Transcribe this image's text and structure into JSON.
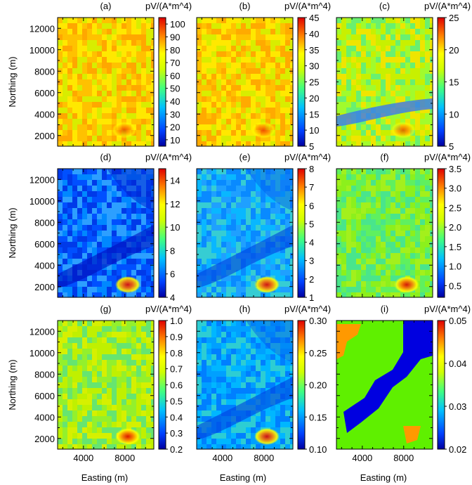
{
  "figure": {
    "xlabel": "Easting (m)",
    "ylabel": "Northing (m)",
    "colorbar_unit": "pV/(A*m^4)"
  },
  "chart_data": [
    {
      "type": "heatmap",
      "title": "(a)",
      "xlabel": "",
      "ylabel": "Northing (m)",
      "xticks": [],
      "yticks": [
        "2000",
        "4000",
        "6000",
        "8000",
        "10000",
        "12000"
      ],
      "xlim": [
        1500,
        10800
      ],
      "ylim": [
        1000,
        13000
      ],
      "clim": [
        5,
        105
      ],
      "cticks": [
        "10",
        "20",
        "30",
        "40",
        "50",
        "60",
        "70",
        "80",
        "90",
        "100"
      ],
      "cticks_values": [
        10,
        20,
        30,
        40,
        50,
        60,
        70,
        80,
        90,
        100
      ],
      "unit": "pV/(A*m^4)"
    },
    {
      "type": "heatmap",
      "title": "(b)",
      "xlabel": "",
      "ylabel": "",
      "xticks": [],
      "yticks": [],
      "xlim": [
        1500,
        10800
      ],
      "ylim": [
        1000,
        13000
      ],
      "clim": [
        5,
        45
      ],
      "cticks": [
        "5",
        "10",
        "15",
        "20",
        "25",
        "30",
        "35",
        "40",
        "45"
      ],
      "cticks_values": [
        5,
        10,
        15,
        20,
        25,
        30,
        35,
        40,
        45
      ],
      "unit": "pV/(A*m^4)"
    },
    {
      "type": "heatmap",
      "title": "(c)",
      "xlabel": "",
      "ylabel": "",
      "xticks": [],
      "yticks": [],
      "xlim": [
        1500,
        10800
      ],
      "ylim": [
        1000,
        13000
      ],
      "clim": [
        5,
        25
      ],
      "cticks": [
        "5",
        "10",
        "15",
        "20",
        "25"
      ],
      "cticks_values": [
        5,
        10,
        15,
        20,
        25
      ],
      "unit": "pV/(A*m^4)"
    },
    {
      "type": "heatmap",
      "title": "(d)",
      "xlabel": "",
      "ylabel": "Northing (m)",
      "xticks": [],
      "yticks": [
        "2000",
        "4000",
        "6000",
        "8000",
        "10000",
        "12000"
      ],
      "xlim": [
        1500,
        10800
      ],
      "ylim": [
        1000,
        13000
      ],
      "clim": [
        4,
        15
      ],
      "cticks": [
        "4",
        "6",
        "8",
        "10",
        "12",
        "14"
      ],
      "cticks_values": [
        4,
        6,
        8,
        10,
        12,
        14
      ],
      "unit": "pV/(A*m^4)"
    },
    {
      "type": "heatmap",
      "title": "(e)",
      "xlabel": "",
      "ylabel": "",
      "xticks": [],
      "yticks": [],
      "xlim": [
        1500,
        10800
      ],
      "ylim": [
        1000,
        13000
      ],
      "clim": [
        1,
        8
      ],
      "cticks": [
        "1",
        "2",
        "3",
        "4",
        "5",
        "6",
        "7",
        "8"
      ],
      "cticks_values": [
        1,
        2,
        3,
        4,
        5,
        6,
        7,
        8
      ],
      "unit": "pV/(A*m^4)"
    },
    {
      "type": "heatmap",
      "title": "(f)",
      "xlabel": "",
      "ylabel": "",
      "xticks": [],
      "yticks": [],
      "xlim": [
        1500,
        10800
      ],
      "ylim": [
        1000,
        13000
      ],
      "clim": [
        0.2,
        3.5
      ],
      "cticks": [
        "0.5",
        "1.0",
        "1.5",
        "2.0",
        "2.5",
        "3.0",
        "3.5"
      ],
      "cticks_values": [
        0.5,
        1.0,
        1.5,
        2.0,
        2.5,
        3.0,
        3.5
      ],
      "unit": "pV/(A*m^4)"
    },
    {
      "type": "heatmap",
      "title": "(g)",
      "xlabel": "Easting (m)",
      "ylabel": "Northing (m)",
      "xticks": [
        "4000",
        "8000"
      ],
      "yticks": [
        "2000",
        "4000",
        "6000",
        "8000",
        "10000",
        "12000"
      ],
      "xlim": [
        1500,
        10800
      ],
      "ylim": [
        1000,
        13000
      ],
      "clim": [
        0.2,
        1.0
      ],
      "cticks": [
        "0.2",
        "0.3",
        "0.4",
        "0.5",
        "0.6",
        "0.7",
        "0.8",
        "0.9",
        "1.0"
      ],
      "cticks_values": [
        0.2,
        0.3,
        0.4,
        0.5,
        0.6,
        0.7,
        0.8,
        0.9,
        1.0
      ],
      "unit": "pV/(A*m^4)"
    },
    {
      "type": "heatmap",
      "title": "(h)",
      "xlabel": "Easting (m)",
      "ylabel": "",
      "xticks": [
        "4000",
        "8000"
      ],
      "yticks": [],
      "xlim": [
        1500,
        10800
      ],
      "ylim": [
        1000,
        13000
      ],
      "clim": [
        0.1,
        0.3
      ],
      "cticks": [
        "0.10",
        "0.15",
        "0.20",
        "0.25",
        "0.30"
      ],
      "cticks_values": [
        0.1,
        0.15,
        0.2,
        0.25,
        0.3
      ],
      "unit": "pV/(A*m^4)"
    },
    {
      "type": "heatmap",
      "title": "(i)",
      "xlabel": "Easting (m)",
      "ylabel": "",
      "xticks": [
        "4000",
        "8000"
      ],
      "yticks": [],
      "xlim": [
        1500,
        10800
      ],
      "ylim": [
        1000,
        13000
      ],
      "clim": [
        0.02,
        0.05
      ],
      "cticks": [
        "0.02",
        "0.03",
        "0.04",
        "0.05"
      ],
      "cticks_values": [
        0.02,
        0.03,
        0.04,
        0.05
      ],
      "unit": "pV/(A*m^4)"
    }
  ]
}
